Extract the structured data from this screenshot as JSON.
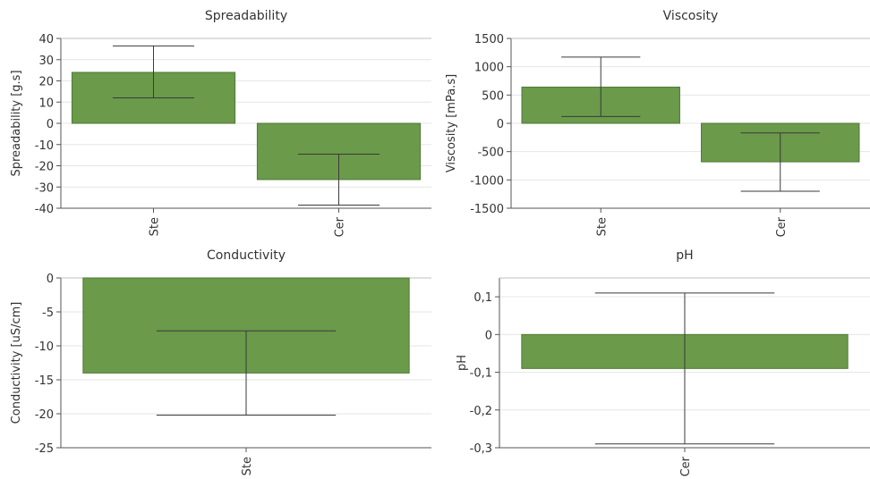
{
  "chart_data": [
    {
      "type": "bar",
      "title": "Spreadability",
      "ylabel": "Spreadability [g.s]",
      "categories": [
        "Ste",
        "Cer"
      ],
      "values": [
        24,
        -26.5
      ],
      "error_low": [
        12,
        -38.5
      ],
      "error_high": [
        36.5,
        -14.5
      ],
      "ylim": [
        -40,
        40
      ],
      "yticks": [
        40,
        30,
        20,
        10,
        0,
        -10,
        -20,
        -30,
        -40
      ],
      "ytick_labels": [
        "40",
        "30",
        "20",
        "10",
        "0",
        "-10",
        "-20",
        "-30",
        "-40"
      ],
      "bar_color": "#6a9a4a"
    },
    {
      "type": "bar",
      "title": "Viscosity",
      "ylabel": "Viscosity [mPa.s]",
      "categories": [
        "Ste",
        "Cer"
      ],
      "values": [
        640,
        -680
      ],
      "error_low": [
        120,
        -1200
      ],
      "error_high": [
        1170,
        -170
      ],
      "ylim": [
        -1500,
        1500
      ],
      "yticks": [
        1500,
        1000,
        500,
        0,
        -500,
        -1000,
        -1500
      ],
      "ytick_labels": [
        "1500",
        "1000",
        "500",
        "0",
        "-500",
        "-1000",
        "-1500"
      ],
      "bar_color": "#6a9a4a"
    },
    {
      "type": "bar",
      "title": "Conductivity",
      "ylabel": "Conductivity [uS/cm]",
      "categories": [
        "Ste"
      ],
      "values": [
        -14
      ],
      "error_low": [
        -20.2
      ],
      "error_high": [
        -7.8
      ],
      "ylim": [
        -25,
        0
      ],
      "yticks": [
        0,
        -5,
        -10,
        -15,
        -20,
        -25
      ],
      "ytick_labels": [
        "0",
        "-5",
        "-10",
        "-15",
        "-20",
        "-25"
      ],
      "bar_color": "#6a9a4a"
    },
    {
      "type": "bar",
      "title": "pH",
      "ylabel": "pH",
      "categories": [
        "Cer"
      ],
      "values": [
        -0.09
      ],
      "error_low": [
        -0.29
      ],
      "error_high": [
        0.11
      ],
      "ylim": [
        -0.3,
        0.15
      ],
      "yticks": [
        0.1,
        0,
        -0.1,
        -0.2,
        -0.3
      ],
      "ytick_labels": [
        "0,1",
        "0",
        "-0,1",
        "-0,2",
        "-0,3"
      ],
      "bar_color": "#6a9a4a"
    }
  ]
}
